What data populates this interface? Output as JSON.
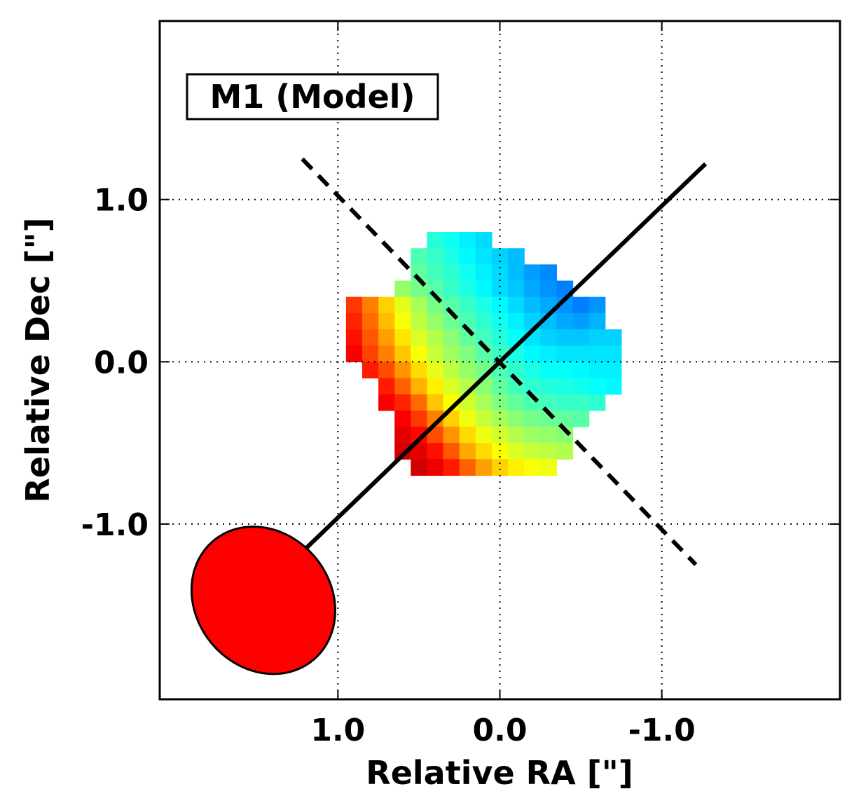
{
  "chart_data": {
    "type": "heatmap",
    "title": "",
    "panel_label": "M1 (Model)",
    "xlabel": "Relative RA [\"]",
    "ylabel": "Relative Dec [\"]",
    "xlim": [
      2.1,
      -2.1
    ],
    "ylim": [
      -2.08,
      2.1
    ],
    "x_direction": "decreasing to the right",
    "xticks": [
      1.0,
      0.0,
      -1.0
    ],
    "xtick_labels": [
      "1.0",
      "0.0",
      "-1.0"
    ],
    "yticks": [
      1.0,
      0.0,
      -1.0
    ],
    "ytick_labels": [
      "1.0",
      "0.0",
      "-1.0"
    ],
    "grid": true,
    "grid_style": "dotted",
    "colormap": "jet",
    "colormap_range": [
      0,
      100
    ],
    "pixel_size_arcsec": 0.1,
    "heatmap": {
      "description": "Velocity field: columns are RA from 0.9 to -0.8 arcsec (step -0.1); rows are Dec from 0.75 to -0.65 arcsec (step -0.1); null = no data",
      "ra_start": 0.9,
      "ra_step": -0.1,
      "dec_start": 0.75,
      "dec_step": -0.1,
      "rows": [
        [
          null,
          null,
          null,
          null,
          null,
          41,
          39,
          36,
          34,
          null,
          null,
          null,
          null,
          null,
          null,
          null,
          null,
          null
        ],
        [
          null,
          null,
          null,
          null,
          45,
          43,
          40,
          37,
          35,
          33,
          31,
          null,
          null,
          null,
          null,
          null,
          null,
          null
        ],
        [
          null,
          null,
          null,
          null,
          47,
          44,
          42,
          39,
          36,
          34,
          31,
          28,
          26,
          null,
          null,
          null,
          null,
          null
        ],
        [
          null,
          null,
          null,
          52,
          49,
          46,
          43,
          40,
          37,
          34,
          32,
          29,
          27,
          25,
          null,
          null,
          null,
          null
        ],
        [
          82,
          75,
          67,
          60,
          54,
          49,
          46,
          43,
          40,
          37,
          34,
          31,
          29,
          27,
          25,
          27,
          null,
          null
        ],
        [
          84,
          77,
          69,
          62,
          56,
          52,
          48,
          45,
          42,
          39,
          36,
          33,
          31,
          29,
          28,
          30,
          null,
          null
        ],
        [
          86,
          79,
          72,
          65,
          59,
          55,
          51,
          47,
          44,
          41,
          38,
          35,
          33,
          32,
          32,
          33,
          33,
          null
        ],
        [
          88,
          81,
          75,
          68,
          62,
          57,
          53,
          50,
          46,
          43,
          40,
          37,
          36,
          35,
          35,
          35,
          35,
          null
        ],
        [
          null,
          85,
          80,
          73,
          66,
          60,
          56,
          52,
          49,
          45,
          42,
          40,
          38,
          38,
          37,
          36,
          36,
          null
        ],
        [
          null,
          null,
          85,
          78,
          70,
          64,
          59,
          55,
          51,
          47,
          44,
          42,
          41,
          40,
          39,
          38,
          37,
          null
        ],
        [
          null,
          null,
          88,
          84,
          77,
          68,
          62,
          58,
          54,
          50,
          47,
          45,
          44,
          43,
          43,
          42,
          null,
          null
        ],
        [
          null,
          null,
          null,
          88,
          82,
          75,
          67,
          61,
          57,
          54,
          51,
          49,
          48,
          47,
          46,
          null,
          null,
          null
        ],
        [
          null,
          null,
          null,
          90,
          87,
          80,
          73,
          66,
          61,
          58,
          55,
          53,
          52,
          51,
          null,
          null,
          null,
          null
        ],
        [
          null,
          null,
          null,
          92,
          90,
          86,
          79,
          71,
          66,
          62,
          59,
          57,
          56,
          55,
          null,
          null,
          null,
          null
        ],
        [
          null,
          null,
          null,
          null,
          92,
          89,
          85,
          78,
          72,
          67,
          64,
          62,
          61,
          null,
          null,
          null,
          null,
          null
        ]
      ]
    },
    "lines": [
      {
        "name": "kinematic major axis",
        "style": "solid",
        "x": [
          1.27,
          -1.27
        ],
        "y": [
          -1.22,
          1.22
        ]
      },
      {
        "name": "kinematic minor axis",
        "style": "dashed",
        "x": [
          1.22,
          -1.21
        ],
        "y": [
          1.25,
          -1.25
        ]
      }
    ],
    "beam": {
      "color": "#ff0000",
      "center_x": 1.46,
      "center_y": -1.47,
      "major_axis": 0.96,
      "minor_axis": 0.83,
      "position_angle_deg": 50
    }
  }
}
